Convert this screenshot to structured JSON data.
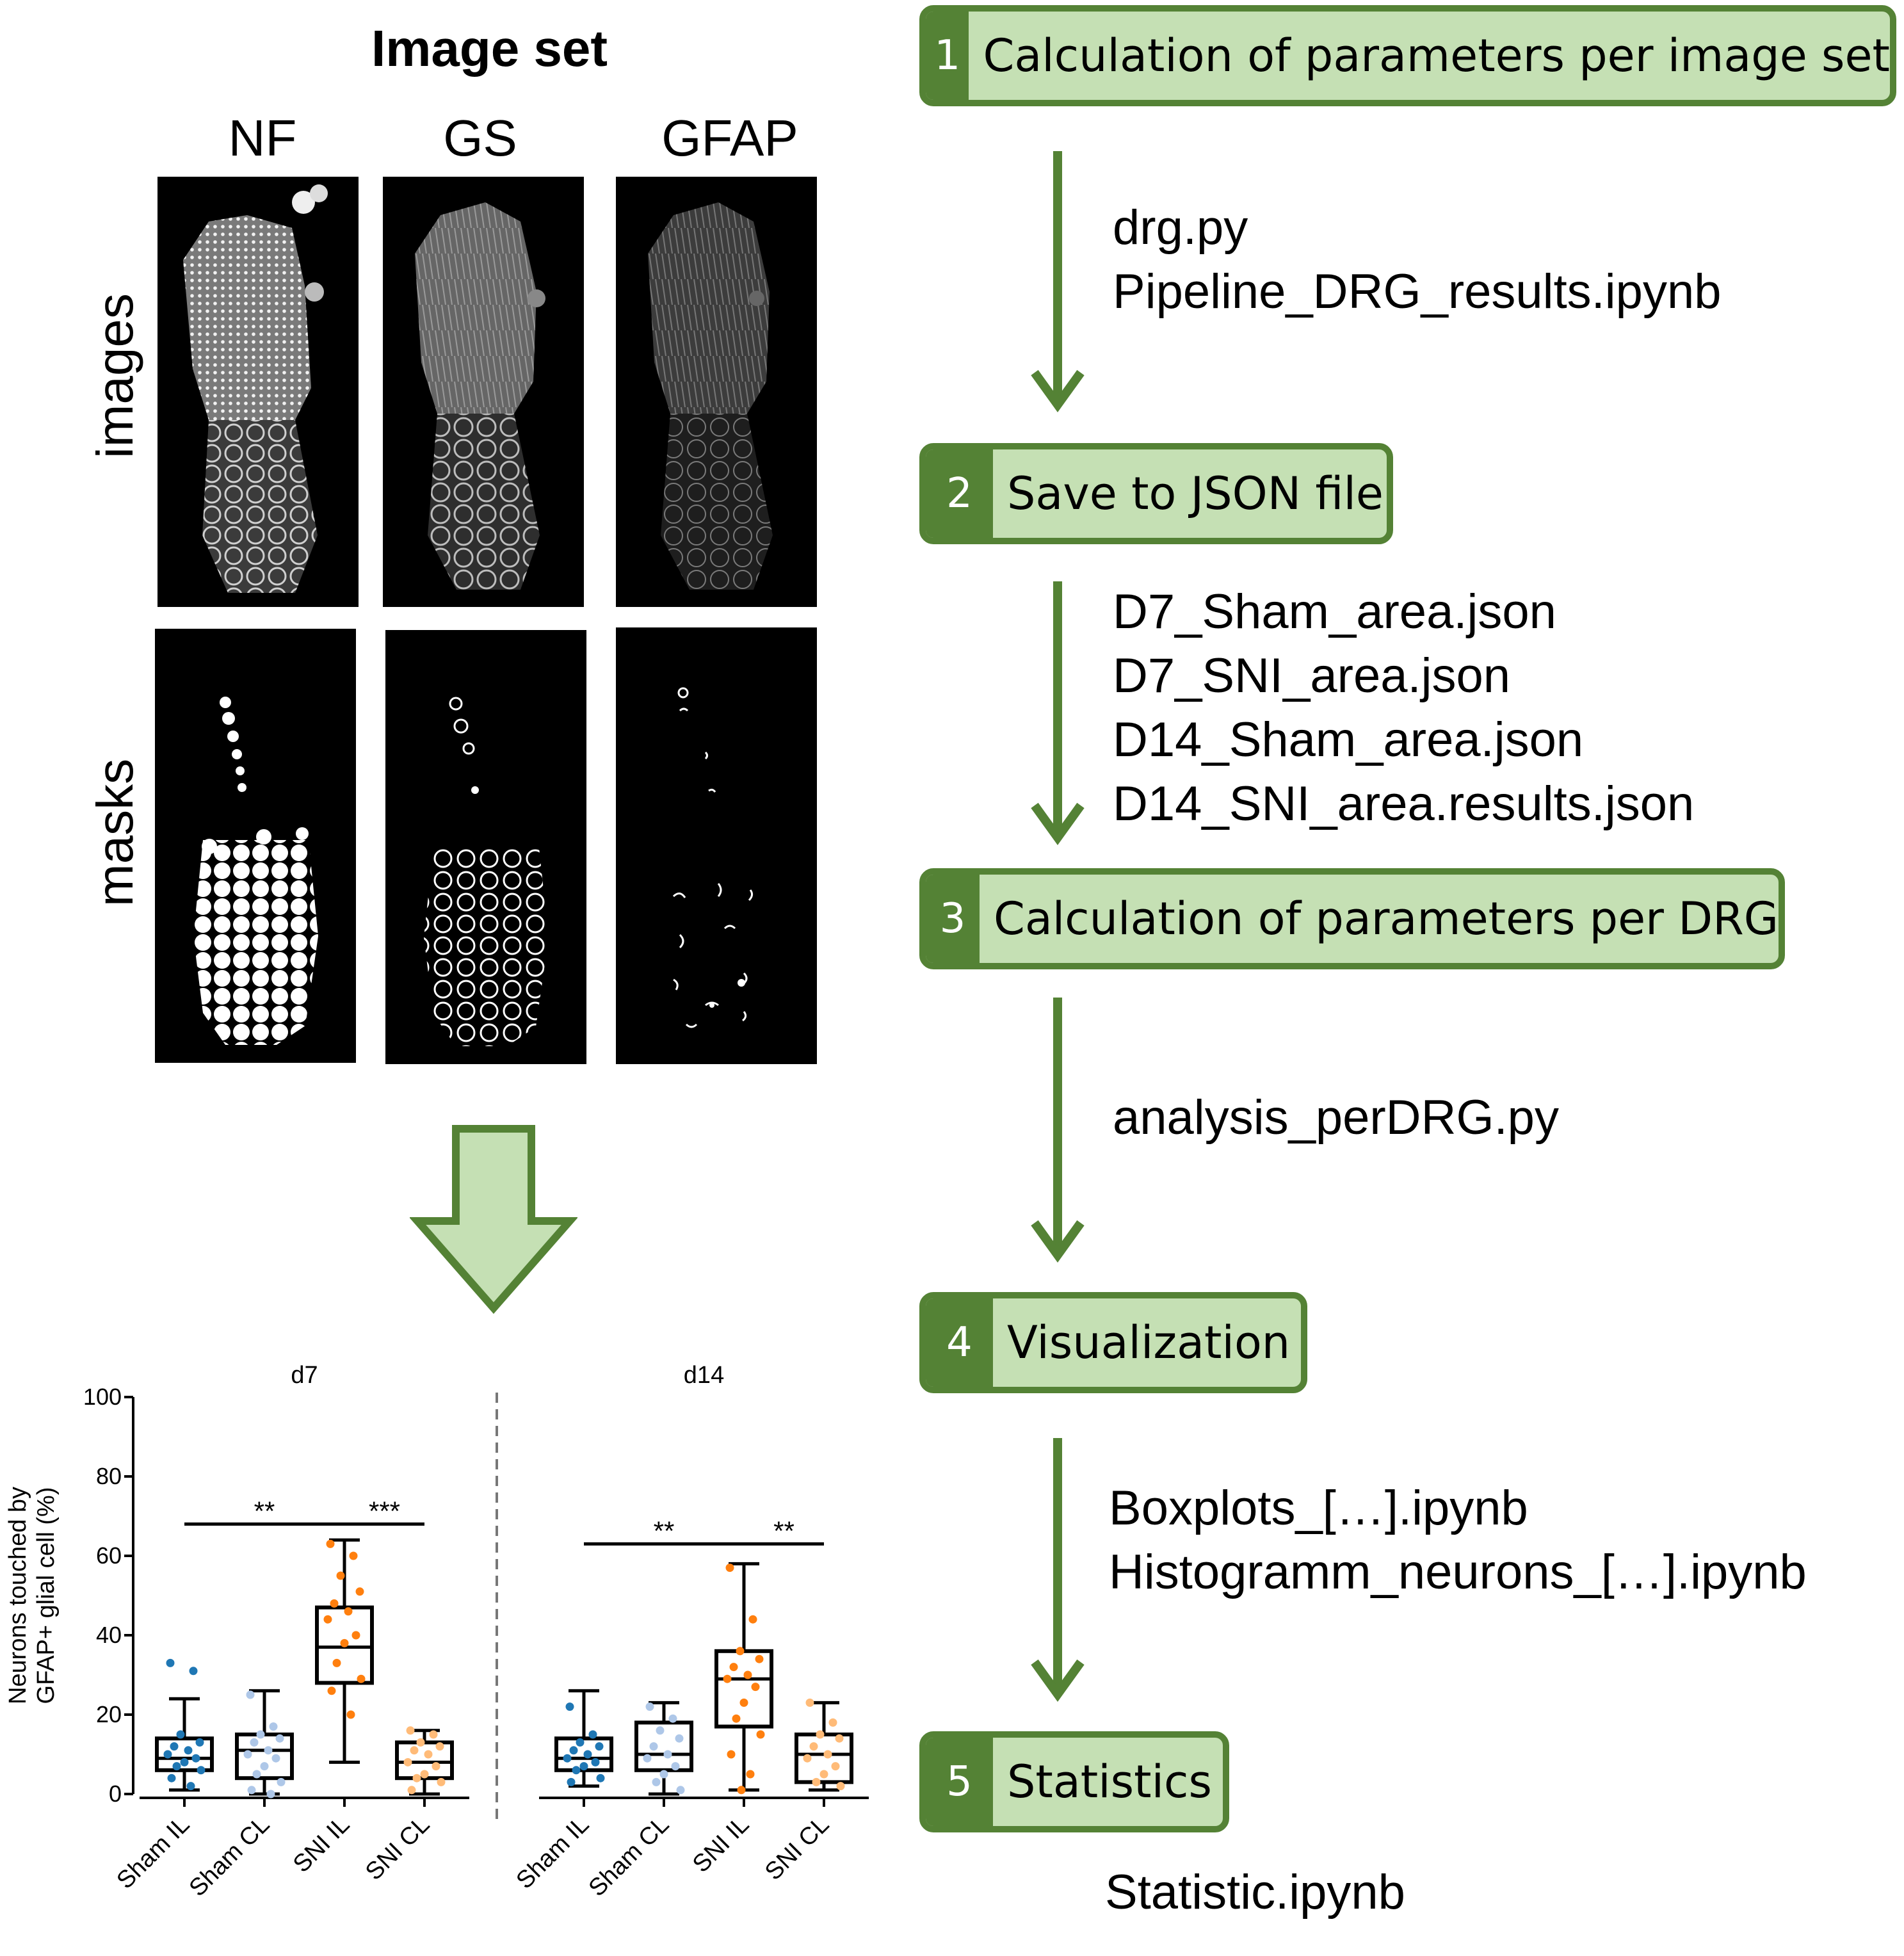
{
  "image_set": {
    "title": "Image set",
    "channels": [
      "NF",
      "GS",
      "GFAP"
    ],
    "row_labels": [
      "images",
      "masks"
    ]
  },
  "pipeline": {
    "steps": [
      {
        "num": "1",
        "label": "Calculation of parameters per image set"
      },
      {
        "num": "2",
        "label": "Save to JSON file"
      },
      {
        "num": "3",
        "label": "Calculation of parameters per DRG"
      },
      {
        "num": "4",
        "label": "Visualization"
      },
      {
        "num": "5",
        "label": "Statistics"
      }
    ],
    "files": [
      [
        "drg.py",
        "Pipeline_DRG_results.ipynb"
      ],
      [
        "D7_Sham_area.json",
        "D7_SNI_area.json",
        "D14_Sham_area.json",
        "D14_SNI_area.results.json"
      ],
      [
        "analysis_perDRG.py"
      ],
      [
        "Boxplots_[…].ipynb",
        "Histogramm_neurons_[…].ipynb"
      ],
      [
        "Statistic.ipynb"
      ]
    ],
    "colors": {
      "dark_green": "#548235",
      "light_green": "#c5e0b4"
    }
  },
  "chart_data": {
    "type": "box",
    "ylabel_lines": [
      "Neurons touched by",
      "GFAP+ glial cell (%)"
    ],
    "ylim": [
      0,
      100
    ],
    "yticks": [
      0,
      20,
      40,
      60,
      80,
      100
    ],
    "categories": [
      "Sham IL",
      "Sham CL",
      "SNI IL",
      "SNI CL"
    ],
    "colors": {
      "Sham IL": "#1f77b4",
      "Sham CL": "#aec7e8",
      "SNI IL": "#ff7f0e",
      "SNI CL": "#ffbb78"
    },
    "panels": [
      {
        "title": "d7",
        "boxes": [
          {
            "category": "Sham IL",
            "min": 1,
            "q1": 6,
            "median": 9,
            "q3": 14,
            "max": 24,
            "points": [
              33,
              31,
              15,
              13,
              12,
              11,
              10,
              9,
              8,
              7,
              6,
              4,
              2
            ]
          },
          {
            "category": "Sham CL",
            "min": 0,
            "q1": 4,
            "median": 11,
            "q3": 15,
            "max": 26,
            "points": [
              25,
              17,
              15,
              14,
              13,
              11,
              10,
              9,
              7,
              5,
              3,
              1,
              0
            ]
          },
          {
            "category": "SNI IL",
            "min": 8,
            "q1": 28,
            "median": 37,
            "q3": 47,
            "max": 64,
            "points": [
              63,
              60,
              55,
              51,
              48,
              46,
              44,
              40,
              38,
              33,
              29,
              26,
              20
            ]
          },
          {
            "category": "SNI CL",
            "min": 0,
            "q1": 4,
            "median": 8,
            "q3": 13,
            "max": 16,
            "points": [
              16,
              15,
              13,
              12,
              11,
              10,
              8,
              7,
              5,
              4,
              3,
              1
            ]
          }
        ],
        "significance": [
          {
            "from": "Sham IL",
            "to": "SNI IL",
            "y": 68,
            "label": "**"
          },
          {
            "from": "SNI IL",
            "to": "SNI CL",
            "y": 68,
            "label": "***"
          }
        ]
      },
      {
        "title": "d14",
        "boxes": [
          {
            "category": "Sham IL",
            "min": 2,
            "q1": 6,
            "median": 9,
            "q3": 14,
            "max": 26,
            "points": [
              22,
              15,
              13,
              12,
              11,
              10,
              9,
              8,
              7,
              6,
              4,
              3
            ]
          },
          {
            "category": "Sham CL",
            "min": 0,
            "q1": 6,
            "median": 10,
            "q3": 18,
            "max": 23,
            "points": [
              22,
              19,
              16,
              14,
              12,
              10,
              9,
              7,
              5,
              3,
              1
            ]
          },
          {
            "category": "SNI IL",
            "min": 1,
            "q1": 17,
            "median": 29,
            "q3": 36,
            "max": 58,
            "points": [
              57,
              44,
              36,
              34,
              32,
              30,
              29,
              27,
              23,
              19,
              15,
              10,
              5,
              1
            ]
          },
          {
            "category": "SNI CL",
            "min": 1,
            "q1": 3,
            "median": 10,
            "q3": 15,
            "max": 23,
            "points": [
              23,
              18,
              15,
              14,
              12,
              10,
              9,
              7,
              5,
              3,
              2
            ]
          }
        ],
        "significance": [
          {
            "from": "Sham IL",
            "to": "SNI IL",
            "y": 63,
            "label": "**"
          },
          {
            "from": "SNI IL",
            "to": "SNI CL",
            "y": 63,
            "label": "**"
          }
        ]
      }
    ]
  }
}
